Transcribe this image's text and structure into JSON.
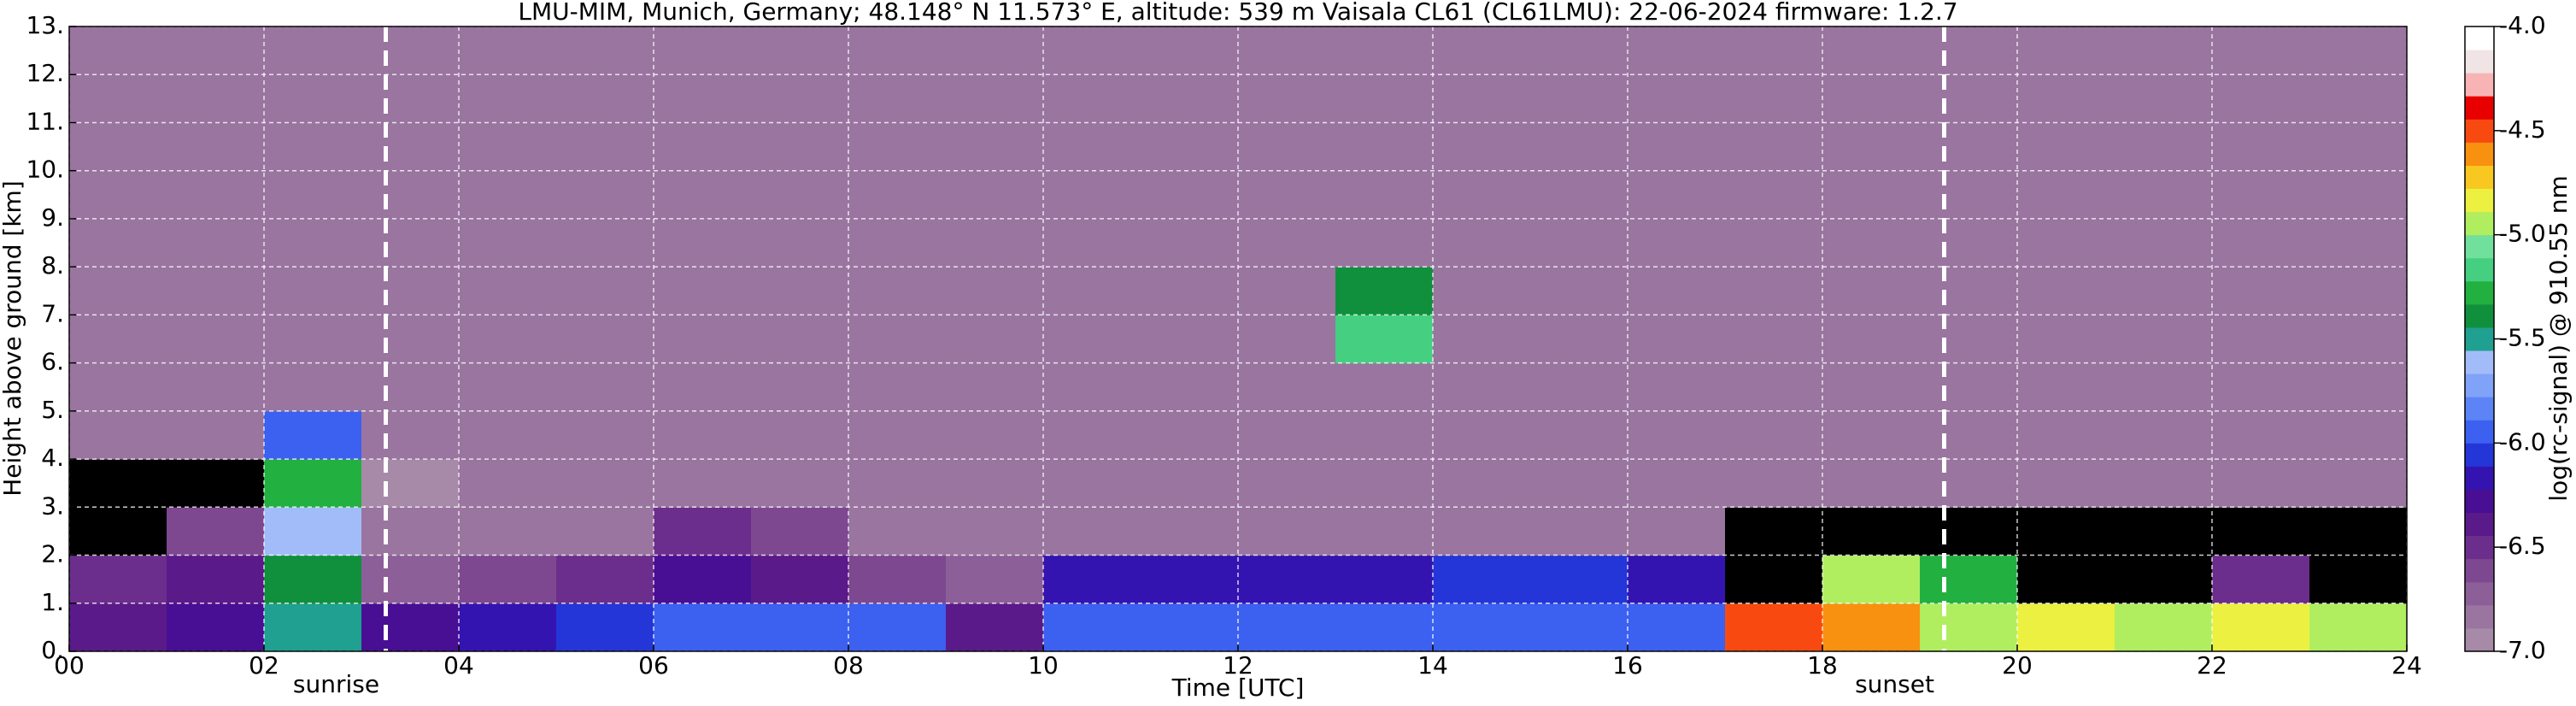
{
  "chart_data": {
    "type": "heatmap",
    "title": "LMU-MIM, Munich, Germany; 48.148° N 11.573° E, altitude: 539 m    Vaisala CL61 (CL61LMU): 22-06-2024    firmware: 1.2.7",
    "x_label": "Time [UTC]",
    "y_label": "Height above ground [km]",
    "colorbar_label": "log(rc-signal) @ 910.55 nm",
    "xlim": [
      0,
      24
    ],
    "xticks": [
      {
        "value": 0,
        "label": "00"
      },
      {
        "value": 2,
        "label": "02"
      },
      {
        "value": 4,
        "label": "04"
      },
      {
        "value": 6,
        "label": "06"
      },
      {
        "value": 8,
        "label": "08"
      },
      {
        "value": 10,
        "label": "10"
      },
      {
        "value": 12,
        "label": "12"
      },
      {
        "value": 14,
        "label": "14"
      },
      {
        "value": 16,
        "label": "16"
      },
      {
        "value": 18,
        "label": "18"
      },
      {
        "value": 20,
        "label": "20"
      },
      {
        "value": 22,
        "label": "22"
      },
      {
        "value": 24,
        "label": "24"
      }
    ],
    "ylim": [
      0,
      13
    ],
    "yticks": [
      {
        "value": 0,
        "label": "0."
      },
      {
        "value": 1,
        "label": "1."
      },
      {
        "value": 2,
        "label": "2."
      },
      {
        "value": 3,
        "label": "3."
      },
      {
        "value": 4,
        "label": "4."
      },
      {
        "value": 5,
        "label": "5."
      },
      {
        "value": 6,
        "label": "6."
      },
      {
        "value": 7,
        "label": "7."
      },
      {
        "value": 8,
        "label": "8."
      },
      {
        "value": 9,
        "label": "9."
      },
      {
        "value": 10,
        "label": "10."
      },
      {
        "value": 11,
        "label": "11."
      },
      {
        "value": 12,
        "label": "12."
      },
      {
        "value": 13,
        "label": "13."
      }
    ],
    "grid": true,
    "clim": [
      -7,
      -4
    ],
    "cticks": [
      {
        "value": -7,
        "label": "-7.0"
      },
      {
        "value": -6.5,
        "label": "-6.5"
      },
      {
        "value": -6,
        "label": "-6.0"
      },
      {
        "value": -5.5,
        "label": "-5.5"
      },
      {
        "value": -5,
        "label": "-5.0"
      },
      {
        "value": -4.5,
        "label": "-4.5"
      },
      {
        "value": -4,
        "label": "-4.0"
      }
    ],
    "colormap": [
      "#a68aa8",
      "#9a75a0",
      "#8d5f98",
      "#7e4890",
      "#6c2e8c",
      "#5a1a8a",
      "#480f94",
      "#3414b0",
      "#2436d8",
      "#3c60f0",
      "#5c84f6",
      "#80a2f8",
      "#a2bcfa",
      "#20a090",
      "#10903c",
      "#22b040",
      "#44d080",
      "#70e09c",
      "#b0ee60",
      "#ecf040",
      "#f8c820",
      "#f89010",
      "#f84a10",
      "#e80000",
      "#f8b4b4",
      "#f0e4e4",
      "#ffffff"
    ],
    "under_color": "#000000",
    "x": [
      0.5,
      1.5,
      2.5,
      3.5,
      4.5,
      5.5,
      6.5,
      7.5,
      8.5,
      9.5,
      10.5,
      11.5,
      12.5,
      13.5,
      14.5,
      15.5,
      16.5,
      17.5,
      18.5,
      19.5,
      20.5,
      21.5,
      22.5,
      23.5
    ],
    "y": [
      0.5,
      1.5,
      2.5,
      3.5,
      4.5,
      5.5,
      6.5,
      7.5,
      8.5,
      9.5,
      10.5,
      11.5,
      12.5
    ],
    "z": [
      [
        -6.4,
        -6.3,
        -5.5,
        -6.3,
        -6.2,
        -6.1,
        -6.0,
        -6.0,
        -6.0,
        -6.4,
        -6.0,
        -6.0,
        -6.0,
        -6.0,
        -6.0,
        -6.0,
        -6.0,
        -4.5,
        -4.6,
        -4.9,
        -4.8,
        -4.9,
        -4.8,
        -4.9
      ],
      [
        -6.5,
        -6.4,
        -5.4,
        -6.7,
        -6.6,
        -6.5,
        -6.3,
        -6.4,
        -6.6,
        -6.7,
        -6.2,
        -6.2,
        -6.2,
        -6.2,
        -6.1,
        -6.1,
        -6.2,
        -7.5,
        -5.0,
        -5.3,
        -7.5,
        -7.5,
        -6.5,
        -7.5
      ],
      [
        -7.5,
        -6.6,
        -5.6,
        -6.8,
        -6.8,
        -6.8,
        -6.5,
        -6.6,
        -6.8,
        -6.8,
        -6.8,
        -6.8,
        -6.8,
        -6.8,
        -6.8,
        -6.8,
        -6.8,
        -7.5,
        -7.5,
        -7.5,
        -7.5,
        -7.5,
        -7.5,
        -7.5
      ],
      [
        -7.5,
        -7.5,
        -5.3,
        -6.9,
        -6.8,
        -6.8,
        -6.8,
        -6.8,
        -6.8,
        -6.8,
        -6.8,
        -6.8,
        -6.8,
        -6.8,
        -6.8,
        -6.8,
        -6.8,
        -6.8,
        -6.8,
        -6.8,
        -6.8,
        -6.8,
        -6.8,
        -6.8
      ],
      [
        -6.8,
        -6.8,
        -6.0,
        -6.8,
        -6.8,
        -6.8,
        -6.8,
        -6.8,
        -6.8,
        -6.8,
        -6.8,
        -6.8,
        -6.8,
        -6.8,
        -6.8,
        -6.8,
        -6.8,
        -6.8,
        -6.8,
        -6.8,
        -6.8,
        -6.8,
        -6.8,
        -6.8
      ],
      [
        -6.8,
        -6.8,
        -6.8,
        -6.8,
        -6.8,
        -6.8,
        -6.8,
        -6.8,
        -6.8,
        -6.8,
        -6.8,
        -6.8,
        -6.8,
        -6.8,
        -6.8,
        -6.8,
        -6.8,
        -6.8,
        -6.8,
        -6.8,
        -6.8,
        -6.8,
        -6.8,
        -6.8
      ],
      [
        -6.8,
        -6.8,
        -6.8,
        -6.8,
        -6.8,
        -6.8,
        -6.8,
        -6.8,
        -6.8,
        -6.8,
        -6.8,
        -6.8,
        -6.8,
        -5.2,
        -6.8,
        -6.8,
        -6.8,
        -6.8,
        -6.8,
        -6.8,
        -6.8,
        -6.8,
        -6.8,
        -6.8
      ],
      [
        -6.8,
        -6.8,
        -6.8,
        -6.8,
        -6.8,
        -6.8,
        -6.8,
        -6.8,
        -6.8,
        -6.8,
        -6.8,
        -6.8,
        -6.8,
        -5.4,
        -6.8,
        -6.8,
        -6.8,
        -6.8,
        -6.8,
        -6.8,
        -6.8,
        -6.8,
        -6.8,
        -6.8
      ],
      [
        -6.8,
        -6.8,
        -6.8,
        -6.8,
        -6.8,
        -6.8,
        -6.8,
        -6.8,
        -6.8,
        -6.8,
        -6.8,
        -6.8,
        -6.8,
        -6.8,
        -6.8,
        -6.8,
        -6.8,
        -6.8,
        -6.8,
        -6.8,
        -6.8,
        -6.8,
        -6.8,
        -6.8
      ],
      [
        -6.8,
        -6.8,
        -6.8,
        -6.8,
        -6.8,
        -6.8,
        -6.8,
        -6.8,
        -6.8,
        -6.8,
        -6.8,
        -6.8,
        -6.8,
        -6.8,
        -6.8,
        -6.8,
        -6.8,
        -6.8,
        -6.8,
        -6.8,
        -6.8,
        -6.8,
        -6.8,
        -6.8
      ],
      [
        -6.8,
        -6.8,
        -6.8,
        -6.8,
        -6.8,
        -6.8,
        -6.8,
        -6.8,
        -6.8,
        -6.8,
        -6.8,
        -6.8,
        -6.8,
        -6.8,
        -6.8,
        -6.8,
        -6.8,
        -6.8,
        -6.8,
        -6.8,
        -6.8,
        -6.8,
        -6.8,
        -6.8
      ],
      [
        -6.8,
        -6.8,
        -6.8,
        -6.8,
        -6.8,
        -6.8,
        -6.8,
        -6.8,
        -6.8,
        -6.8,
        -6.8,
        -6.8,
        -6.8,
        -6.8,
        -6.8,
        -6.8,
        -6.8,
        -6.8,
        -6.8,
        -6.8,
        -6.8,
        -6.8,
        -6.8,
        -6.8
      ],
      [
        -6.8,
        -6.8,
        -6.8,
        -6.8,
        -6.8,
        -6.8,
        -6.8,
        -6.8,
        -6.8,
        -6.8,
        -6.8,
        -6.8,
        -6.8,
        -6.8,
        -6.8,
        -6.8,
        -6.8,
        -6.8,
        -6.8,
        -6.8,
        -6.8,
        -6.8,
        -6.8,
        -6.8
      ]
    ],
    "annotations": [
      {
        "x": 3.25,
        "text": "sunrise"
      },
      {
        "x": 19.25,
        "text": "sunset"
      }
    ]
  }
}
